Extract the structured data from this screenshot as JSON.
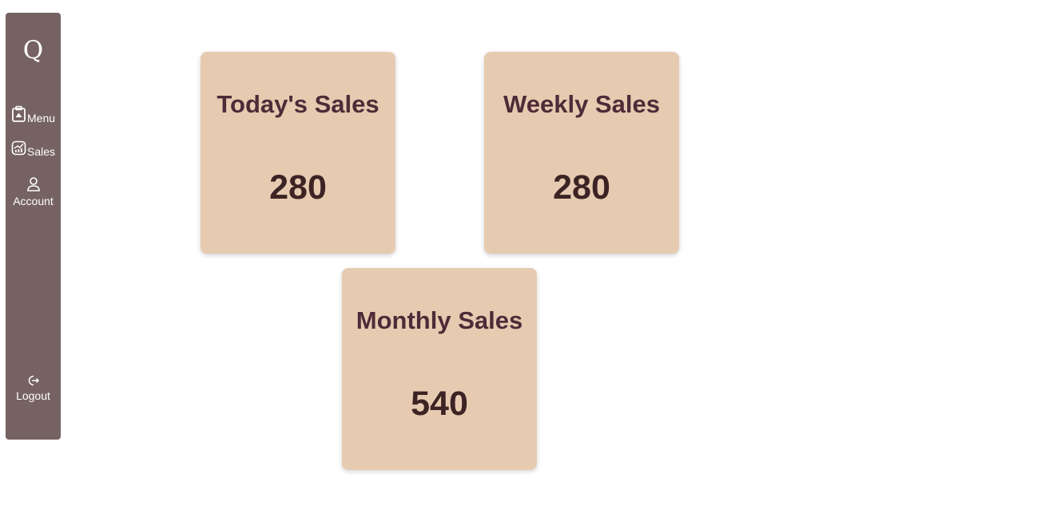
{
  "sidebar": {
    "logo": "Q",
    "items": [
      {
        "label": "Menu",
        "icon": "clipboard-icon"
      },
      {
        "label": "Sales",
        "icon": "chart-icon"
      },
      {
        "label": "Account",
        "icon": "user-icon"
      }
    ],
    "logout": {
      "label": "Logout",
      "icon": "logout-icon"
    }
  },
  "cards": [
    {
      "title": "Today's Sales",
      "value": "280"
    },
    {
      "title": "Weekly Sales",
      "value": "280"
    },
    {
      "title": "Monthly Sales",
      "value": "540"
    }
  ],
  "colors": {
    "sidebar_bg": "#766263",
    "card_bg": "#e6cbb1",
    "card_title": "#4f2b38",
    "card_value": "#3c2324"
  }
}
